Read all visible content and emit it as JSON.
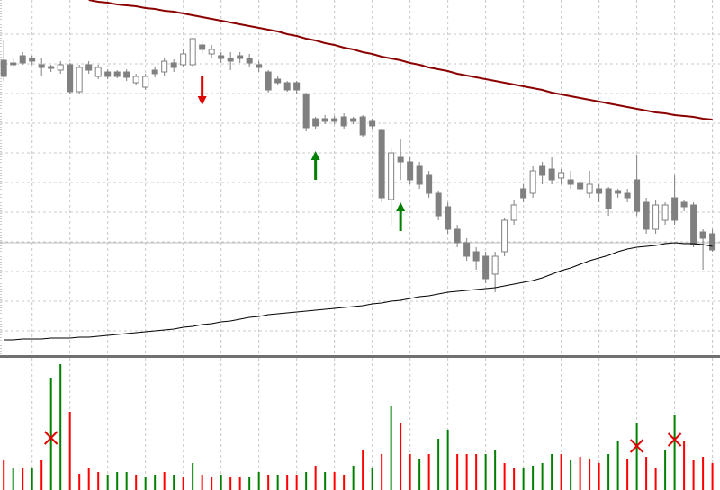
{
  "chart_data": [
    {
      "type": "candlestick",
      "x": [
        0,
        1,
        2,
        3,
        4,
        5,
        6,
        7,
        8,
        9,
        10,
        11,
        12,
        13,
        14,
        15,
        16,
        17,
        18,
        19,
        20,
        21,
        22,
        23,
        24,
        25,
        26,
        27,
        28,
        29,
        30,
        31,
        32,
        33,
        34,
        35,
        36,
        37,
        38,
        39,
        40,
        41,
        42,
        43,
        44,
        45,
        46,
        47,
        48,
        49,
        50,
        51,
        52,
        53,
        54,
        55,
        56,
        57,
        58,
        59,
        60,
        61,
        62,
        63,
        64,
        65,
        66,
        67,
        68,
        69,
        70,
        71,
        72,
        73,
        74,
        75
      ],
      "open": [
        333,
        330,
        338,
        335,
        328,
        326,
        322,
        328,
        298,
        328,
        315,
        320,
        320,
        320,
        308,
        303,
        322,
        320,
        330,
        328,
        328,
        350,
        340,
        338,
        335,
        338,
        335,
        328,
        320,
        312,
        308,
        308,
        295,
        268,
        268,
        268,
        270,
        268,
        270,
        265,
        255,
        178,
        225,
        220,
        215,
        205,
        185,
        170,
        145,
        130,
        120,
        115,
        95,
        120,
        155,
        190,
        185,
        215,
        212,
        202,
        200,
        197,
        185,
        190,
        190,
        188,
        185,
        200,
        175,
        145,
        155,
        180,
        175,
        172,
        142,
        140
      ],
      "high": [
        355,
        335,
        342,
        338,
        335,
        328,
        332,
        330,
        328,
        332,
        328,
        323,
        322,
        323,
        318,
        318,
        326,
        335,
        334,
        345,
        358,
        354,
        350,
        342,
        342,
        342,
        340,
        332,
        322,
        315,
        310,
        310,
        297,
        270,
        272,
        271,
        274,
        270,
        272,
        268,
        257,
        235,
        245,
        225,
        220,
        210,
        188,
        175,
        150,
        135,
        125,
        120,
        120,
        158,
        178,
        195,
        215,
        220,
        225,
        212,
        210,
        200,
        210,
        195,
        192,
        190,
        190,
        228,
        180,
        178,
        175,
        205,
        178,
        175,
        145,
        145
      ],
      "low": [
        310,
        325,
        328,
        328,
        315,
        320,
        318,
        296,
        296,
        318,
        312,
        312,
        313,
        310,
        305,
        300,
        314,
        316,
        320,
        325,
        325,
        340,
        335,
        330,
        322,
        330,
        325,
        320,
        297,
        305,
        298,
        296,
        254,
        257,
        262,
        262,
        256,
        262,
        248,
        256,
        175,
        150,
        200,
        195,
        190,
        180,
        155,
        140,
        125,
        110,
        100,
        85,
        75,
        115,
        150,
        175,
        180,
        195,
        195,
        195,
        190,
        185,
        180,
        175,
        160,
        180,
        175,
        160,
        140,
        140,
        150,
        150,
        165,
        125,
        100,
        120
      ],
      "close": [
        315,
        328,
        330,
        332,
        325,
        324,
        328,
        298,
        325,
        322,
        325,
        315,
        315,
        314,
        315,
        315,
        318,
        332,
        325,
        340,
        357,
        345,
        345,
        335,
        332,
        335,
        330,
        325,
        300,
        308,
        300,
        300,
        258,
        260,
        265,
        265,
        260,
        265,
        250,
        260,
        180,
        230,
        220,
        200,
        195,
        185,
        160,
        145,
        130,
        115,
        110,
        90,
        115,
        155,
        172,
        180,
        210,
        205,
        200,
        208,
        195,
        190,
        195,
        185,
        168,
        185,
        180,
        165,
        145,
        172,
        172,
        155,
        170,
        128,
        135,
        122
      ],
      "up_color": "#ffffff",
      "down_color": "#808080",
      "wick_color": "#808080",
      "lines": [
        {
          "color": "#8b0000",
          "width": 2,
          "values": [
            null,
            null,
            null,
            null,
            null,
            null,
            null,
            null,
            null,
            400,
            398,
            397,
            395,
            394,
            393,
            391,
            390,
            388,
            387,
            385,
            383,
            381,
            379,
            377,
            375,
            373,
            371,
            369,
            367,
            365,
            362,
            360,
            357,
            355,
            352,
            350,
            347,
            345,
            342,
            340,
            337,
            335,
            333,
            330,
            328,
            325,
            323,
            321,
            318,
            316,
            314,
            312,
            310,
            308,
            306,
            304,
            302,
            300,
            297,
            295,
            293,
            291,
            289,
            287,
            285,
            283,
            281,
            279,
            277,
            275,
            274,
            272,
            271,
            270,
            268,
            267
          ]
        },
        {
          "color": "#000000",
          "width": 1,
          "values": [
            22,
            22,
            23,
            23,
            23,
            24,
            24,
            24,
            25,
            25,
            26,
            27,
            28,
            29,
            30,
            31,
            32,
            33,
            34,
            36,
            37,
            39,
            40,
            42,
            43,
            45,
            47,
            48,
            50,
            51,
            52,
            53,
            54,
            55,
            56,
            57,
            58,
            59,
            60,
            62,
            63,
            65,
            66,
            68,
            70,
            71,
            73,
            75,
            76,
            77,
            78,
            79,
            80,
            82,
            84,
            86,
            88,
            91,
            95,
            99,
            102,
            106,
            110,
            113,
            116,
            120,
            123,
            125,
            126,
            127,
            129,
            130,
            129,
            129,
            128,
            126
          ]
        }
      ],
      "signals": [
        {
          "index": 21,
          "direction": "down",
          "color": "#e00000"
        },
        {
          "index": 33,
          "direction": "up",
          "color": "#008000"
        },
        {
          "index": 42,
          "direction": "up",
          "color": "#008000"
        }
      ],
      "price_line": 130,
      "xlim": [
        -0.4,
        75.8
      ],
      "ylim": [
        5,
        400
      ],
      "xticks": [
        3,
        7,
        11,
        15,
        19,
        23,
        27,
        31,
        35,
        39,
        43,
        47,
        51,
        55,
        59,
        63,
        67,
        71,
        75
      ],
      "yticks": [
        362,
        329,
        296,
        263,
        230,
        197,
        164,
        131,
        98,
        65,
        32
      ],
      "grid": true
    },
    {
      "type": "bar",
      "x": [
        0,
        1,
        2,
        3,
        4,
        5,
        6,
        7,
        8,
        9,
        10,
        11,
        12,
        13,
        14,
        15,
        16,
        17,
        18,
        19,
        20,
        21,
        22,
        23,
        24,
        25,
        26,
        27,
        28,
        29,
        30,
        31,
        32,
        33,
        34,
        35,
        36,
        37,
        38,
        39,
        40,
        41,
        42,
        43,
        44,
        45,
        46,
        47,
        48,
        49,
        50,
        51,
        52,
        53,
        54,
        55,
        56,
        57,
        58,
        59,
        60,
        61,
        62,
        63,
        64,
        65,
        66,
        67,
        68,
        69,
        70,
        71,
        72,
        73,
        74,
        75
      ],
      "values": [
        33,
        25,
        25,
        25,
        33,
        125,
        140,
        87,
        18,
        25,
        20,
        17,
        20,
        20,
        17,
        15,
        17,
        20,
        17,
        15,
        30,
        17,
        15,
        17,
        15,
        15,
        15,
        20,
        17,
        17,
        17,
        17,
        20,
        27,
        20,
        20,
        17,
        27,
        45,
        25,
        40,
        93,
        75,
        40,
        35,
        40,
        57,
        67,
        40,
        40,
        40,
        40,
        45,
        30,
        25,
        25,
        27,
        30,
        40,
        40,
        33,
        37,
        35,
        30,
        40,
        55,
        35,
        75,
        37,
        25,
        45,
        83,
        55,
        33,
        37,
        30
      ],
      "colors": [
        "#ff0000",
        "#008000",
        "#ff0000",
        "#008000",
        "#ff0000",
        "#008000",
        "#008000",
        "#ff0000",
        "#ff0000",
        "#ff0000",
        "#ff0000",
        "#008000",
        "#008000",
        "#008000",
        "#ff0000",
        "#008000",
        "#008000",
        "#ff0000",
        "#008000",
        "#ff0000",
        "#008000",
        "#ff0000",
        "#ff0000",
        "#008000",
        "#ff0000",
        "#ff0000",
        "#008000",
        "#008000",
        "#ff0000",
        "#008000",
        "#ff0000",
        "#ff0000",
        "#008000",
        "#ff0000",
        "#008000",
        "#ff0000",
        "#ff0000",
        "#008000",
        "#ff0000",
        "#008000",
        "#ff0000",
        "#008000",
        "#ff0000",
        "#ff0000",
        "#008000",
        "#ff0000",
        "#008000",
        "#008000",
        "#ff0000",
        "#ff0000",
        "#ff0000",
        "#008000",
        "#008000",
        "#ff0000",
        "#ff0000",
        "#008000",
        "#008000",
        "#008000",
        "#008000",
        "#ff0000",
        "#008000",
        "#ff0000",
        "#ff0000",
        "#ff0000",
        "#008000",
        "#008000",
        "#ff0000",
        "#008000",
        "#ff0000",
        "#ff0000",
        "#008000",
        "#008000",
        "#ff0000",
        "#ff0000",
        "#ff0000",
        "#ff0000"
      ],
      "crosses": [
        {
          "index": 5,
          "value": 58,
          "color": "#e00000"
        },
        {
          "index": 67,
          "value": 49,
          "color": "#e00000"
        },
        {
          "index": 71,
          "value": 56,
          "color": "#e00000"
        }
      ],
      "xlim": [
        -0.4,
        75.8
      ],
      "ylim": [
        0,
        147
      ],
      "xticks": [
        3,
        7,
        11,
        15,
        19,
        23,
        27,
        31,
        35,
        39,
        43,
        47,
        51,
        55,
        59,
        63,
        67,
        71,
        75
      ],
      "grid": true
    }
  ]
}
